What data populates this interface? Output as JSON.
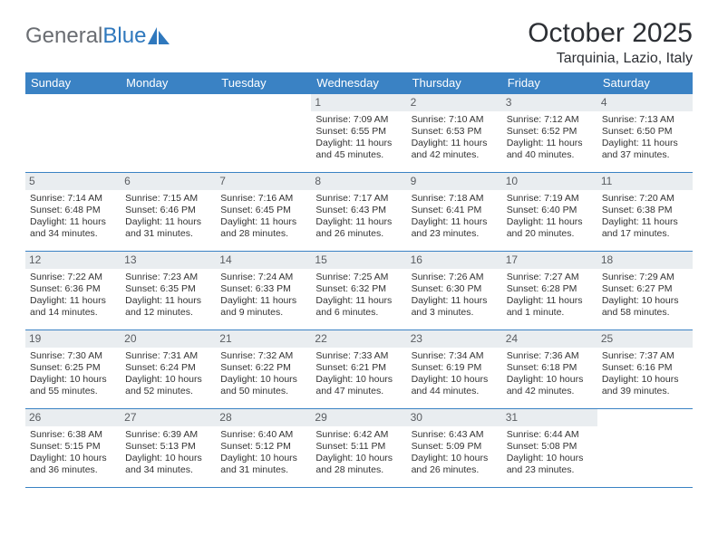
{
  "brand": {
    "text1": "General",
    "text2": "Blue"
  },
  "title": "October 2025",
  "location": "Tarquinia, Lazio, Italy",
  "colors": {
    "header_bg": "#3a82c4",
    "header_text": "#ffffff",
    "daynum_bg": "#e9edf0",
    "daynum_text": "#5a5d61",
    "rule": "#3a82c4",
    "page_bg": "#ffffff",
    "body_text": "#30343a",
    "logo_gray": "#6a6d72",
    "logo_blue": "#2f78bd"
  },
  "day_labels": [
    "Sunday",
    "Monday",
    "Tuesday",
    "Wednesday",
    "Thursday",
    "Friday",
    "Saturday"
  ],
  "weeks": [
    [
      {
        "day": "",
        "sunrise": "",
        "sunset": "",
        "daylight1": "",
        "daylight2": ""
      },
      {
        "day": "",
        "sunrise": "",
        "sunset": "",
        "daylight1": "",
        "daylight2": ""
      },
      {
        "day": "",
        "sunrise": "",
        "sunset": "",
        "daylight1": "",
        "daylight2": ""
      },
      {
        "day": "1",
        "sunrise": "Sunrise: 7:09 AM",
        "sunset": "Sunset: 6:55 PM",
        "daylight1": "Daylight: 11 hours",
        "daylight2": "and 45 minutes."
      },
      {
        "day": "2",
        "sunrise": "Sunrise: 7:10 AM",
        "sunset": "Sunset: 6:53 PM",
        "daylight1": "Daylight: 11 hours",
        "daylight2": "and 42 minutes."
      },
      {
        "day": "3",
        "sunrise": "Sunrise: 7:12 AM",
        "sunset": "Sunset: 6:52 PM",
        "daylight1": "Daylight: 11 hours",
        "daylight2": "and 40 minutes."
      },
      {
        "day": "4",
        "sunrise": "Sunrise: 7:13 AM",
        "sunset": "Sunset: 6:50 PM",
        "daylight1": "Daylight: 11 hours",
        "daylight2": "and 37 minutes."
      }
    ],
    [
      {
        "day": "5",
        "sunrise": "Sunrise: 7:14 AM",
        "sunset": "Sunset: 6:48 PM",
        "daylight1": "Daylight: 11 hours",
        "daylight2": "and 34 minutes."
      },
      {
        "day": "6",
        "sunrise": "Sunrise: 7:15 AM",
        "sunset": "Sunset: 6:46 PM",
        "daylight1": "Daylight: 11 hours",
        "daylight2": "and 31 minutes."
      },
      {
        "day": "7",
        "sunrise": "Sunrise: 7:16 AM",
        "sunset": "Sunset: 6:45 PM",
        "daylight1": "Daylight: 11 hours",
        "daylight2": "and 28 minutes."
      },
      {
        "day": "8",
        "sunrise": "Sunrise: 7:17 AM",
        "sunset": "Sunset: 6:43 PM",
        "daylight1": "Daylight: 11 hours",
        "daylight2": "and 26 minutes."
      },
      {
        "day": "9",
        "sunrise": "Sunrise: 7:18 AM",
        "sunset": "Sunset: 6:41 PM",
        "daylight1": "Daylight: 11 hours",
        "daylight2": "and 23 minutes."
      },
      {
        "day": "10",
        "sunrise": "Sunrise: 7:19 AM",
        "sunset": "Sunset: 6:40 PM",
        "daylight1": "Daylight: 11 hours",
        "daylight2": "and 20 minutes."
      },
      {
        "day": "11",
        "sunrise": "Sunrise: 7:20 AM",
        "sunset": "Sunset: 6:38 PM",
        "daylight1": "Daylight: 11 hours",
        "daylight2": "and 17 minutes."
      }
    ],
    [
      {
        "day": "12",
        "sunrise": "Sunrise: 7:22 AM",
        "sunset": "Sunset: 6:36 PM",
        "daylight1": "Daylight: 11 hours",
        "daylight2": "and 14 minutes."
      },
      {
        "day": "13",
        "sunrise": "Sunrise: 7:23 AM",
        "sunset": "Sunset: 6:35 PM",
        "daylight1": "Daylight: 11 hours",
        "daylight2": "and 12 minutes."
      },
      {
        "day": "14",
        "sunrise": "Sunrise: 7:24 AM",
        "sunset": "Sunset: 6:33 PM",
        "daylight1": "Daylight: 11 hours",
        "daylight2": "and 9 minutes."
      },
      {
        "day": "15",
        "sunrise": "Sunrise: 7:25 AM",
        "sunset": "Sunset: 6:32 PM",
        "daylight1": "Daylight: 11 hours",
        "daylight2": "and 6 minutes."
      },
      {
        "day": "16",
        "sunrise": "Sunrise: 7:26 AM",
        "sunset": "Sunset: 6:30 PM",
        "daylight1": "Daylight: 11 hours",
        "daylight2": "and 3 minutes."
      },
      {
        "day": "17",
        "sunrise": "Sunrise: 7:27 AM",
        "sunset": "Sunset: 6:28 PM",
        "daylight1": "Daylight: 11 hours",
        "daylight2": "and 1 minute."
      },
      {
        "day": "18",
        "sunrise": "Sunrise: 7:29 AM",
        "sunset": "Sunset: 6:27 PM",
        "daylight1": "Daylight: 10 hours",
        "daylight2": "and 58 minutes."
      }
    ],
    [
      {
        "day": "19",
        "sunrise": "Sunrise: 7:30 AM",
        "sunset": "Sunset: 6:25 PM",
        "daylight1": "Daylight: 10 hours",
        "daylight2": "and 55 minutes."
      },
      {
        "day": "20",
        "sunrise": "Sunrise: 7:31 AM",
        "sunset": "Sunset: 6:24 PM",
        "daylight1": "Daylight: 10 hours",
        "daylight2": "and 52 minutes."
      },
      {
        "day": "21",
        "sunrise": "Sunrise: 7:32 AM",
        "sunset": "Sunset: 6:22 PM",
        "daylight1": "Daylight: 10 hours",
        "daylight2": "and 50 minutes."
      },
      {
        "day": "22",
        "sunrise": "Sunrise: 7:33 AM",
        "sunset": "Sunset: 6:21 PM",
        "daylight1": "Daylight: 10 hours",
        "daylight2": "and 47 minutes."
      },
      {
        "day": "23",
        "sunrise": "Sunrise: 7:34 AM",
        "sunset": "Sunset: 6:19 PM",
        "daylight1": "Daylight: 10 hours",
        "daylight2": "and 44 minutes."
      },
      {
        "day": "24",
        "sunrise": "Sunrise: 7:36 AM",
        "sunset": "Sunset: 6:18 PM",
        "daylight1": "Daylight: 10 hours",
        "daylight2": "and 42 minutes."
      },
      {
        "day": "25",
        "sunrise": "Sunrise: 7:37 AM",
        "sunset": "Sunset: 6:16 PM",
        "daylight1": "Daylight: 10 hours",
        "daylight2": "and 39 minutes."
      }
    ],
    [
      {
        "day": "26",
        "sunrise": "Sunrise: 6:38 AM",
        "sunset": "Sunset: 5:15 PM",
        "daylight1": "Daylight: 10 hours",
        "daylight2": "and 36 minutes."
      },
      {
        "day": "27",
        "sunrise": "Sunrise: 6:39 AM",
        "sunset": "Sunset: 5:13 PM",
        "daylight1": "Daylight: 10 hours",
        "daylight2": "and 34 minutes."
      },
      {
        "day": "28",
        "sunrise": "Sunrise: 6:40 AM",
        "sunset": "Sunset: 5:12 PM",
        "daylight1": "Daylight: 10 hours",
        "daylight2": "and 31 minutes."
      },
      {
        "day": "29",
        "sunrise": "Sunrise: 6:42 AM",
        "sunset": "Sunset: 5:11 PM",
        "daylight1": "Daylight: 10 hours",
        "daylight2": "and 28 minutes."
      },
      {
        "day": "30",
        "sunrise": "Sunrise: 6:43 AM",
        "sunset": "Sunset: 5:09 PM",
        "daylight1": "Daylight: 10 hours",
        "daylight2": "and 26 minutes."
      },
      {
        "day": "31",
        "sunrise": "Sunrise: 6:44 AM",
        "sunset": "Sunset: 5:08 PM",
        "daylight1": "Daylight: 10 hours",
        "daylight2": "and 23 minutes."
      },
      {
        "day": "",
        "sunrise": "",
        "sunset": "",
        "daylight1": "",
        "daylight2": ""
      }
    ]
  ]
}
